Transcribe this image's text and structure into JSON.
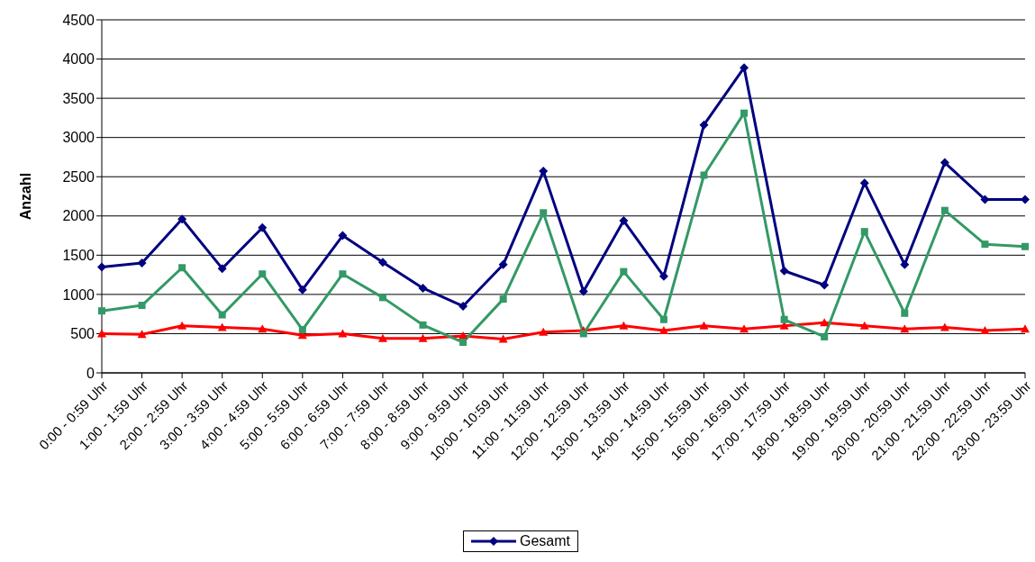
{
  "chart_data": {
    "type": "line",
    "ylabel": "Anzahl",
    "categories": [
      "0:00 - 0:59 Uhr",
      "1:00 - 1:59 Uhr",
      "2:00 - 2:59 Uhr",
      "3:00 - 3:59 Uhr",
      "4:00 - 4:59 Uhr",
      "5:00 - 5:59 Uhr",
      "6:00 - 6:59 Uhr",
      "7:00 - 7:59 Uhr",
      "8:00 - 8:59 Uhr",
      "9:00 - 9:59 Uhr",
      "10:00 - 10:59 Uhr",
      "11:00 - 11:59 Uhr",
      "12:00 - 12:59 Uhr",
      "13:00 - 13:59 Uhr",
      "14:00 - 14:59 Uhr",
      "15:00 - 15:59 Uhr",
      "16:00 - 16:59 Uhr",
      "17:00 - 17:59 Uhr",
      "18:00 - 18:59 Uhr",
      "19:00 - 19:59 Uhr",
      "20:00 - 20:59 Uhr",
      "21:00 - 21:59 Uhr",
      "22:00 - 22:59 Uhr",
      "23:00 - 23:59 Uhr"
    ],
    "series": [
      {
        "name": "Gesamt",
        "color": "#000080",
        "marker": "diamond",
        "values": [
          1350,
          1400,
          1960,
          1330,
          1850,
          1060,
          1750,
          1410,
          1080,
          850,
          1380,
          2570,
          1040,
          1940,
          1230,
          3160,
          3890,
          1300,
          1120,
          2420,
          1380,
          2680,
          2210,
          2210
        ]
      },
      {
        "color": "#339966",
        "marker": "square",
        "values": [
          790,
          860,
          1340,
          740,
          1260,
          550,
          1260,
          960,
          610,
          390,
          940,
          2040,
          500,
          1290,
          680,
          2520,
          3310,
          680,
          460,
          1800,
          760,
          2070,
          1640,
          1610
        ]
      },
      {
        "color": "#ff0000",
        "marker": "triangle",
        "values": [
          500,
          490,
          600,
          580,
          560,
          480,
          500,
          440,
          440,
          470,
          430,
          520,
          540,
          600,
          540,
          600,
          560,
          600,
          640,
          600,
          560,
          580,
          540,
          560
        ]
      }
    ],
    "ylim": [
      0,
      4500
    ],
    "yticks": [
      0,
      500,
      1000,
      1500,
      2000,
      2500,
      3000,
      3500,
      4000,
      4500
    ],
    "grid": "y",
    "legend": "bottom",
    "line_style": "solid"
  }
}
